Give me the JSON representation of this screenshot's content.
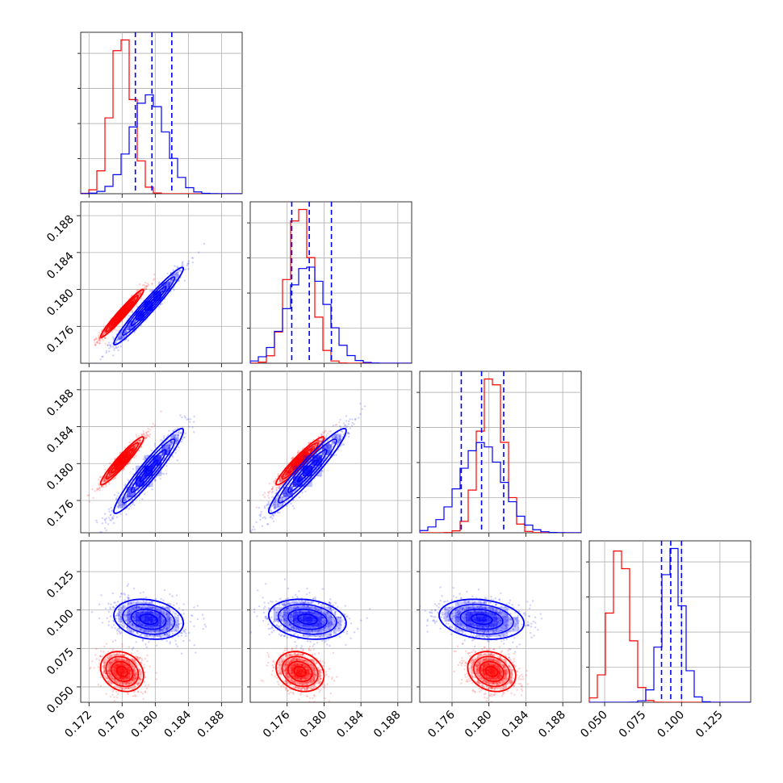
{
  "colors": {
    "series_a": "#ff0000",
    "series_b": "#0000ff",
    "grid": "#b0b0b0"
  },
  "chart_data": {
    "type": "corner",
    "grid": true,
    "series": [
      {
        "color": "red",
        "p0": {
          "mean": 0.176,
          "sd": 0.0013
        },
        "p1": {
          "mean": 0.1774,
          "sd": 0.0013
        },
        "p2": {
          "mean": 0.1803,
          "sd": 0.0013
        },
        "p3": {
          "mean": 0.06,
          "sd": 0.0065
        }
      },
      {
        "color": "blue",
        "p0": {
          "mean": 0.1792,
          "sd": 0.0021
        },
        "p1": {
          "mean": 0.1782,
          "sd": 0.0021
        },
        "p2": {
          "mean": 0.1792,
          "sd": 0.0023
        },
        "p3": {
          "mean": 0.094,
          "sd": 0.0065
        }
      }
    ],
    "quantile_lines": [
      [
        0.1776,
        0.1796,
        0.182
      ],
      [
        0.1765,
        0.1784,
        0.1808
      ],
      [
        0.177,
        0.1792,
        0.1816
      ],
      [
        0.087,
        0.093,
        0.1
      ]
    ],
    "correlations": {
      "p0_p1": 0.97,
      "p0_p2": 0.95,
      "p1_p2": 0.95,
      "p0_p3": -0.2,
      "p1_p3": -0.2,
      "p2_p3": -0.2
    },
    "axes": [
      {
        "range": [
          0.171,
          0.1905
        ],
        "ticks": [
          "0.172",
          "0.176",
          "0.180",
          "0.184",
          "0.188"
        ]
      },
      {
        "range": [
          0.172,
          0.1895
        ],
        "ticks": [
          "0.176",
          "0.180",
          "0.184",
          "0.188"
        ]
      },
      {
        "range": [
          0.1725,
          0.19
        ],
        "ticks": [
          "0.176",
          "0.180",
          "0.184",
          "0.188"
        ]
      },
      {
        "range": [
          0.04,
          0.145
        ],
        "ticks": [
          "0.050",
          "0.075",
          "0.100",
          "0.125"
        ]
      }
    ]
  }
}
